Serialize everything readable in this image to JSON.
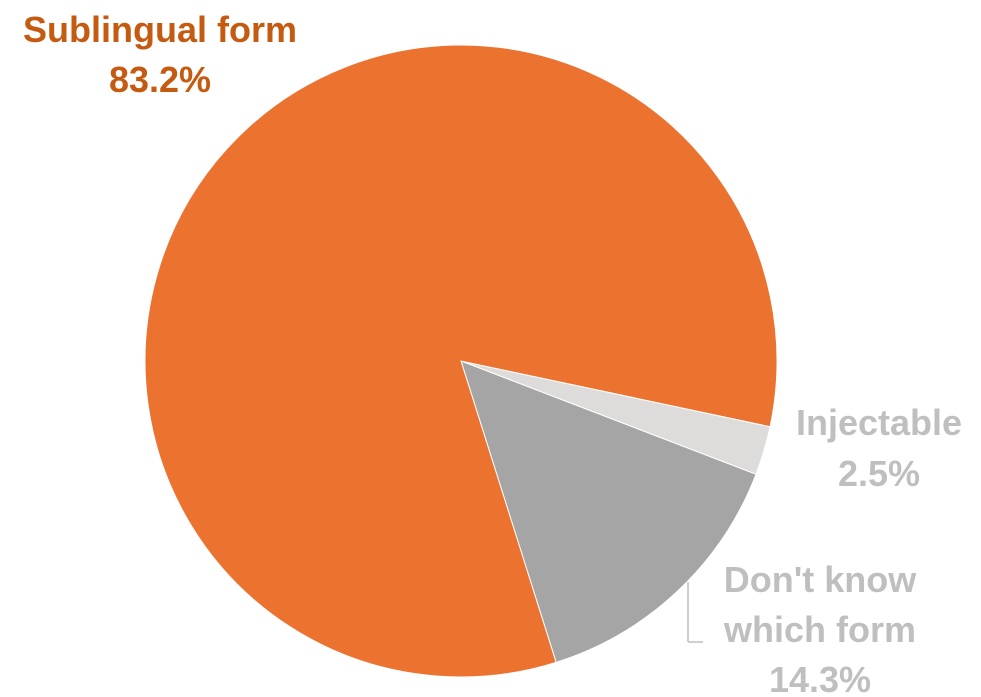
{
  "chart_data": {
    "type": "pie",
    "title": "",
    "slices": [
      {
        "label": "Sublingual form",
        "value": 83.2,
        "value_label": "83.2%",
        "color": "#EC7230"
      },
      {
        "label": "Injectable",
        "value": 2.5,
        "value_label": "2.5%",
        "color": "#DEDCDA"
      },
      {
        "label": "Don't know which form",
        "label_lines": [
          "Don't know",
          "which form"
        ],
        "value": 14.3,
        "value_label": "14.3%",
        "color": "#A5A5A5"
      }
    ],
    "label_colors": [
      "#C55A11",
      "#BFBFBF",
      "#BFBFBF"
    ],
    "legend": "none"
  }
}
